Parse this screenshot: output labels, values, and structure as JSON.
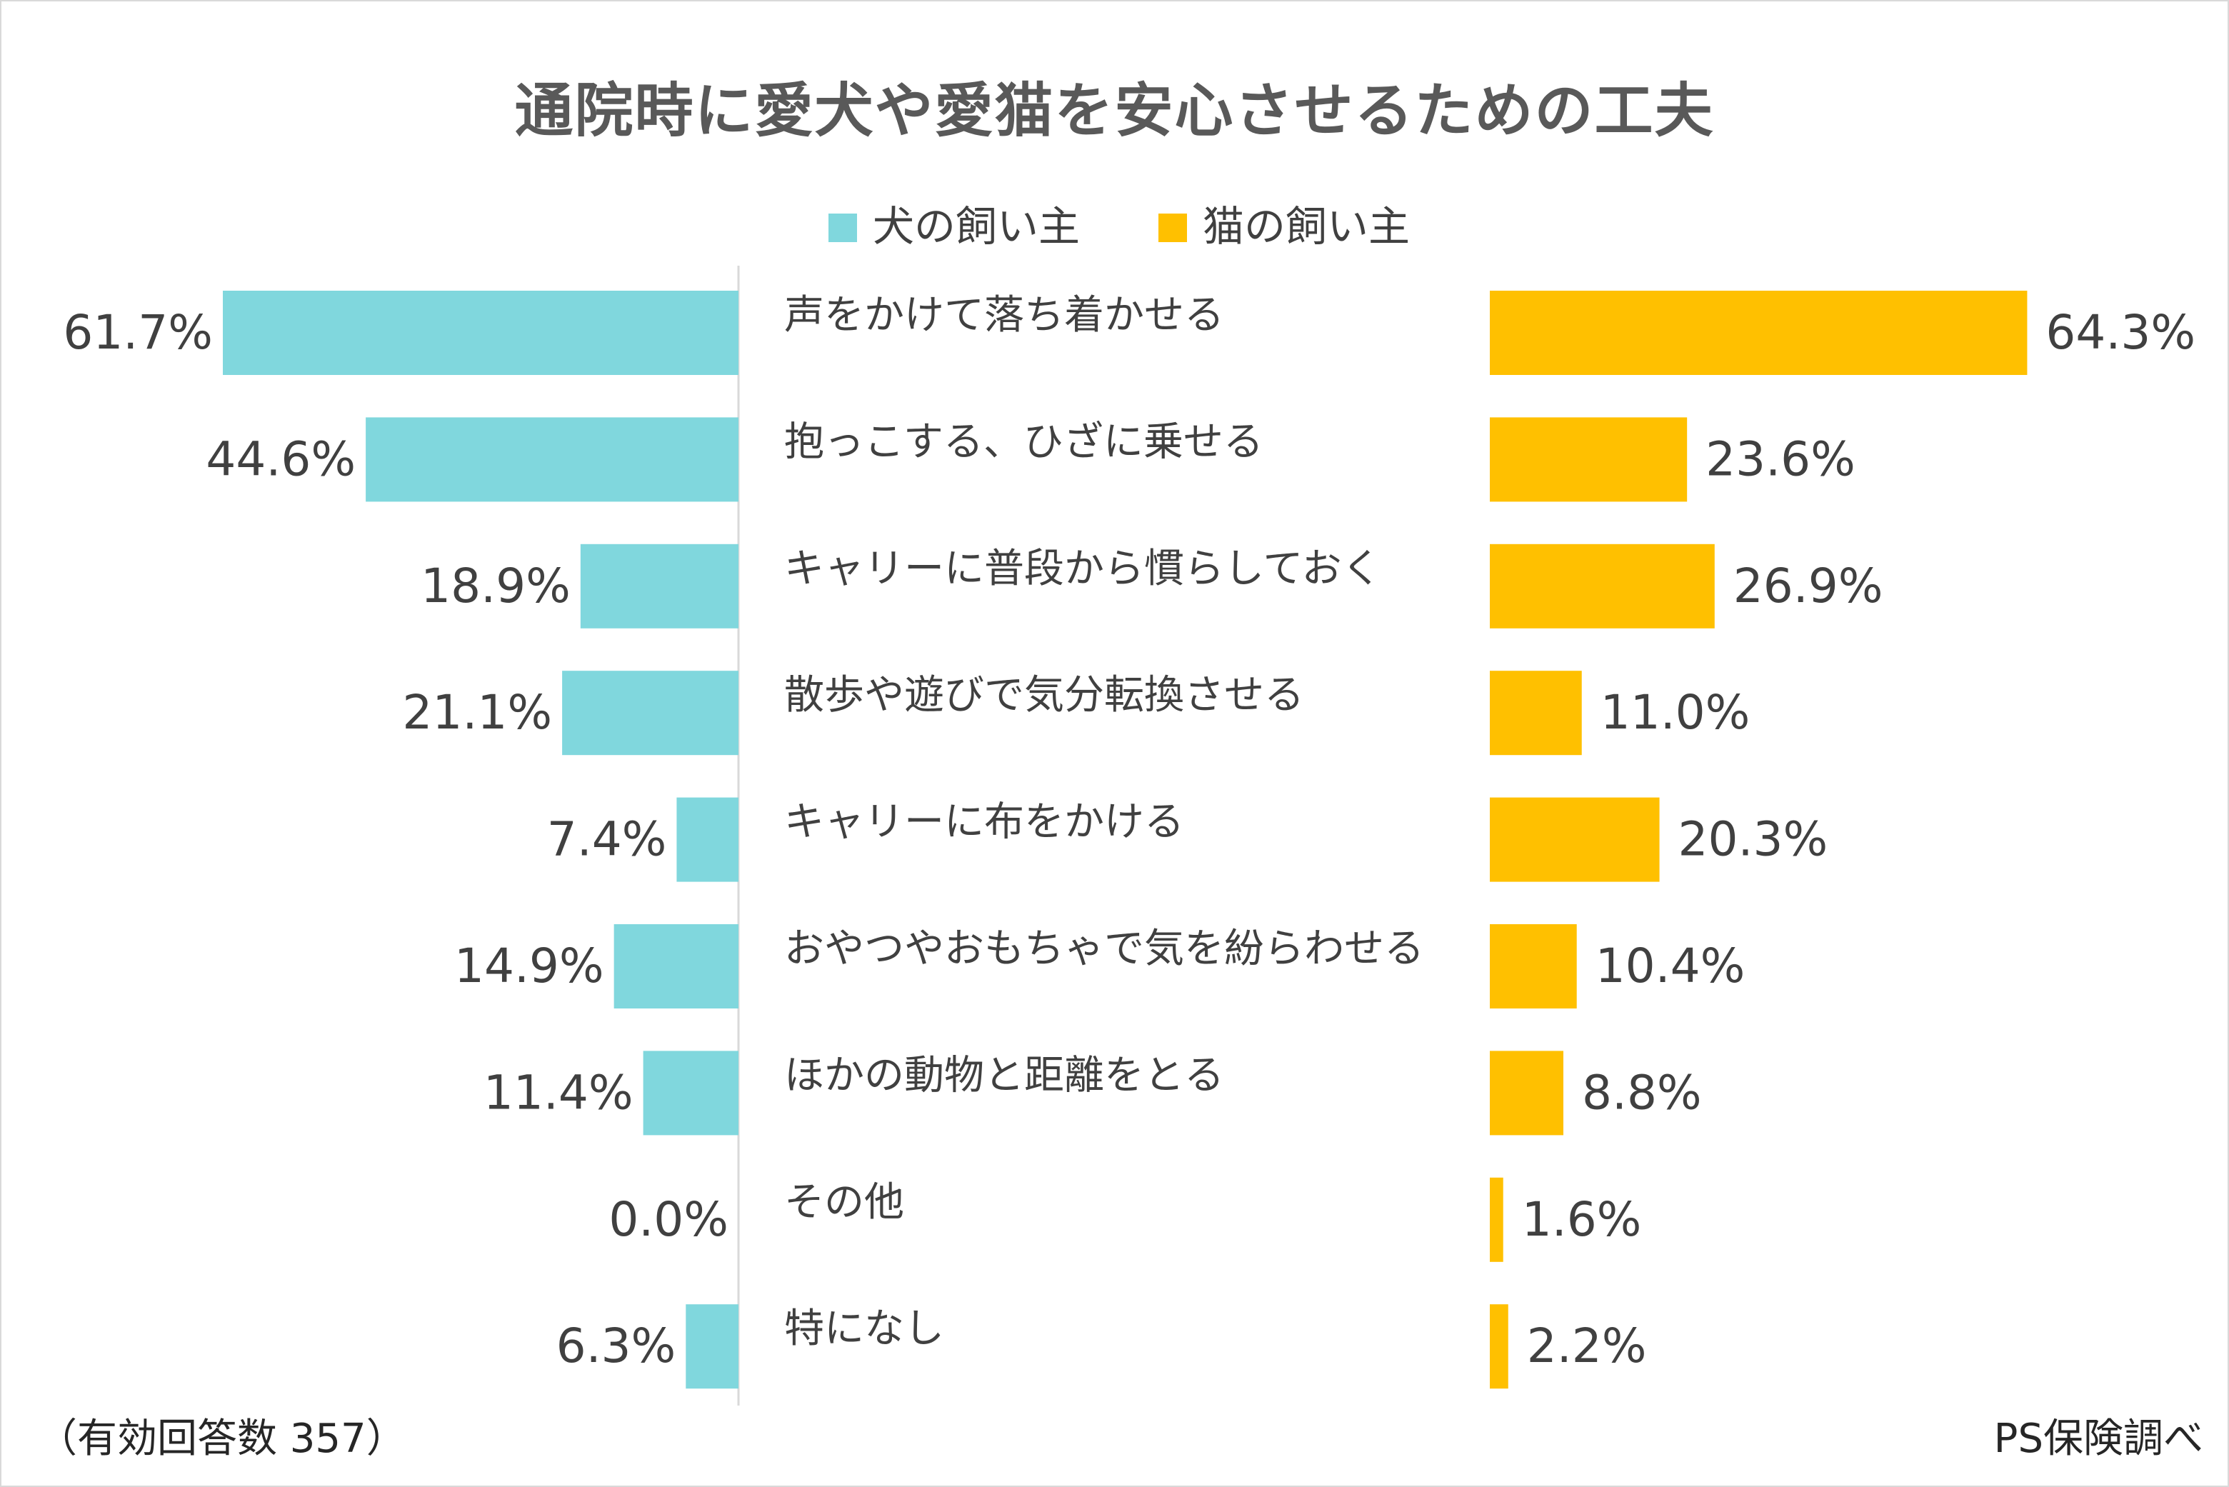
{
  "chart_data": {
    "type": "bar",
    "title": "通院時に愛犬や愛猫を安心させるための工夫",
    "categories": [
      "声をかけて落ち着かせる",
      "抱っこする、ひざに乗せる",
      "キャリーに普段から慣らしておく",
      "散歩や遊びで気分転換させる",
      "キャリーに布をかける",
      "おやつやおもちゃで気を紛らわせる",
      "ほかの動物と距離をとる",
      "その他",
      "特になし"
    ],
    "series": [
      {
        "name": "犬の飼い主",
        "color": "#80d7dd",
        "values": [
          61.7,
          44.6,
          18.9,
          21.1,
          7.4,
          14.9,
          11.4,
          0.0,
          6.3
        ],
        "labels": [
          "61.7%",
          "44.6%",
          "18.9%",
          "21.1%",
          "7.4%",
          "14.9%",
          "11.4%",
          "0.0%",
          "6.3%"
        ]
      },
      {
        "name": "猫の飼い主",
        "color": "#ffc000",
        "values": [
          64.3,
          23.6,
          26.9,
          11.0,
          20.3,
          10.4,
          8.8,
          1.6,
          2.2
        ],
        "labels": [
          "64.3%",
          "23.6%",
          "26.9%",
          "11.0%",
          "20.3%",
          "10.4%",
          "8.8%",
          "1.6%",
          "2.2%"
        ]
      }
    ],
    "unit": "%",
    "xlim": [
      0,
      70
    ],
    "legend": "top-center",
    "grid": false
  },
  "footer": {
    "sample_note": "（有効回答数 357）",
    "source": "PS保険調べ"
  }
}
